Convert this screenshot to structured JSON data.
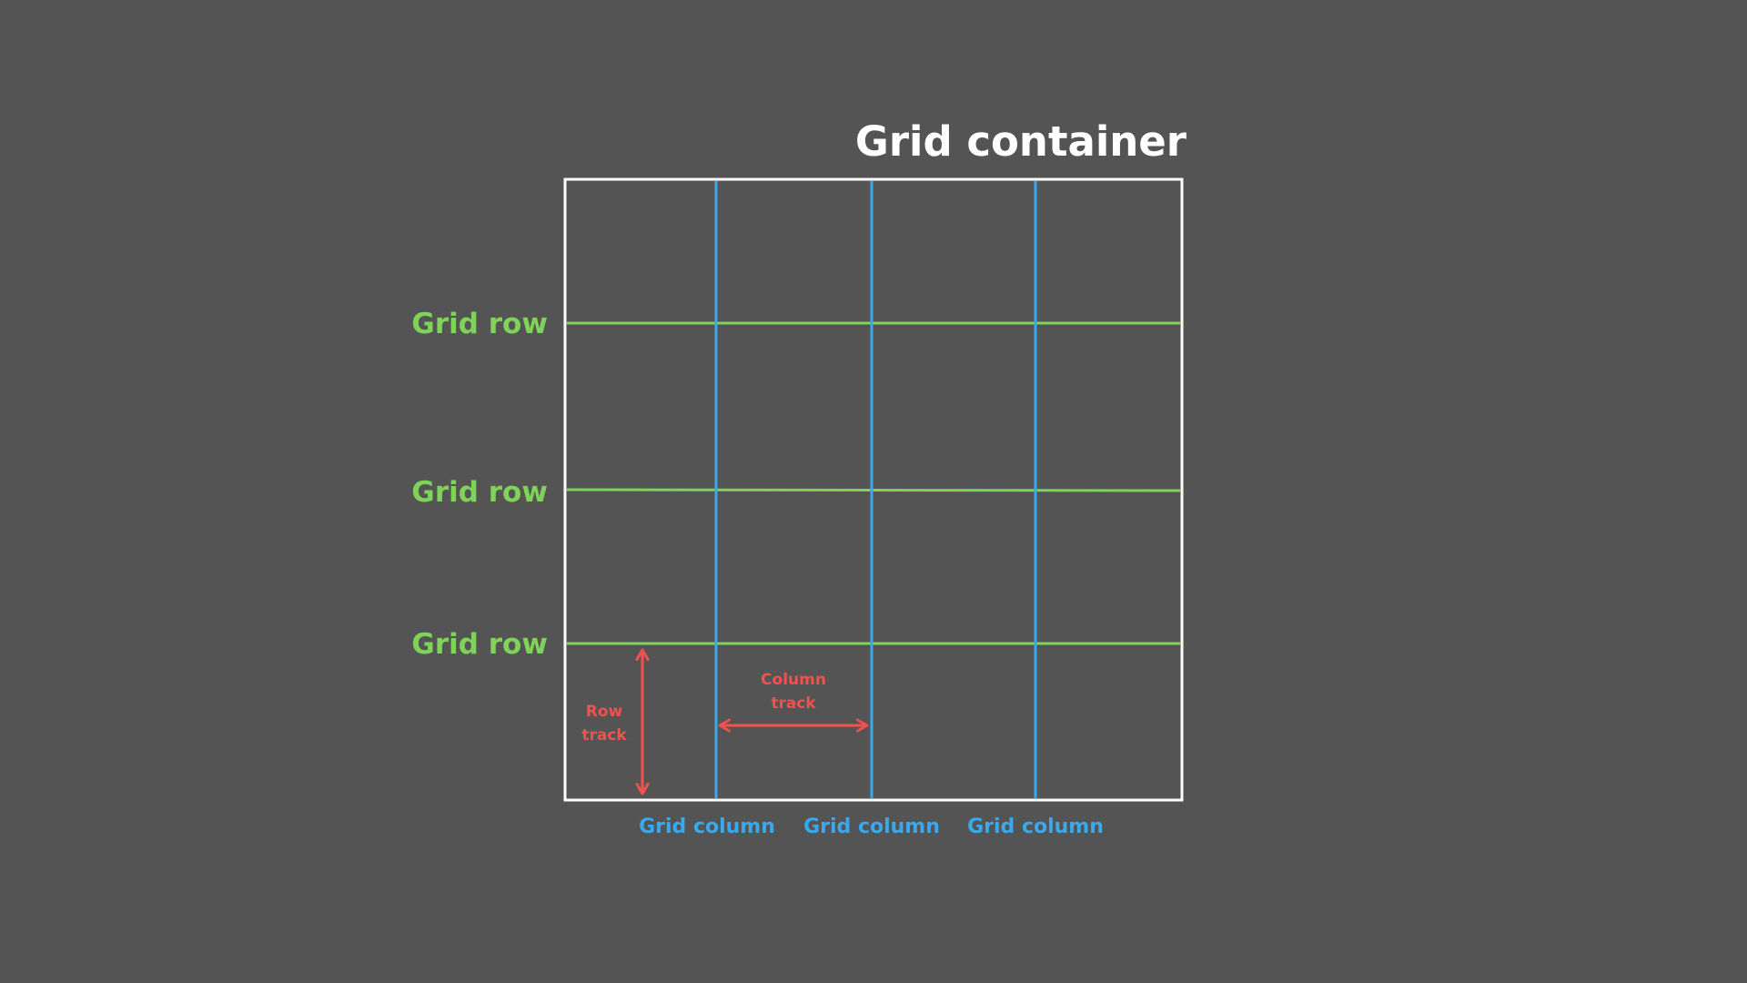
{
  "title": "Grid container",
  "row_labels": [
    "Grid row",
    "Grid row",
    "Grid row"
  ],
  "column_labels": [
    "Grid column",
    "Grid column",
    "Grid column"
  ],
  "row_track": [
    "Row",
    "track"
  ],
  "column_track": [
    "Column",
    "track"
  ],
  "colors": {
    "background": "#545454",
    "container_border": "#ffffff",
    "row_line": "#7ed358",
    "column_line": "#3aa8ec",
    "track_arrow": "#f0524f"
  }
}
